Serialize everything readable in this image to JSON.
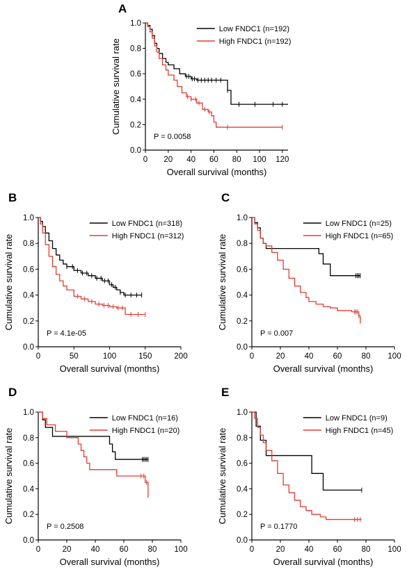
{
  "colors": {
    "low": "#000000",
    "high": "#e03c31"
  },
  "chart_data": [
    {
      "panel": "A",
      "type": "line",
      "xlabel": "Overall survival (months)",
      "ylabel": "Cumulative survival rate",
      "xlim": [
        0,
        125
      ],
      "ylim": [
        0,
        1
      ],
      "xticks": [
        "0",
        "20",
        "40",
        "60",
        "80",
        "100",
        "120"
      ],
      "yticks": [
        "0.0",
        "0.2",
        "0.4",
        "0.6",
        "0.8",
        "1.0"
      ],
      "xtick_values": [
        0,
        20,
        40,
        60,
        80,
        100,
        120
      ],
      "ytick_values": [
        0,
        0.2,
        0.4,
        0.6,
        0.8,
        1.0
      ],
      "legend_position": "top-right",
      "annotation": "P = 0.0058",
      "series": [
        {
          "name": "Low FNDC1 (n=192)",
          "color_key": "low",
          "points": [
            [
              0,
              1
            ],
            [
              2,
              0.98
            ],
            [
              4,
              0.95
            ],
            [
              6,
              0.9
            ],
            [
              8,
              0.84
            ],
            [
              10,
              0.8
            ],
            [
              12,
              0.76
            ],
            [
              15,
              0.72
            ],
            [
              18,
              0.69
            ],
            [
              20,
              0.67
            ],
            [
              25,
              0.64
            ],
            [
              30,
              0.6
            ],
            [
              35,
              0.58
            ],
            [
              40,
              0.56
            ],
            [
              45,
              0.55
            ],
            [
              55,
              0.55
            ],
            [
              65,
              0.55
            ],
            [
              70,
              0.55
            ],
            [
              72,
              0.47
            ],
            [
              75,
              0.36
            ],
            [
              90,
              0.36
            ],
            [
              105,
              0.36
            ],
            [
              120,
              0.36
            ],
            [
              125,
              0.36
            ]
          ],
          "censor": [
            36,
            38,
            41,
            43,
            46,
            49,
            52,
            55,
            58,
            62,
            66,
            72,
            82,
            96,
            112,
            120
          ]
        },
        {
          "name": "High FNDC1 (n=192)",
          "color_key": "high",
          "points": [
            [
              0,
              1
            ],
            [
              2,
              0.97
            ],
            [
              4,
              0.93
            ],
            [
              6,
              0.88
            ],
            [
              8,
              0.82
            ],
            [
              10,
              0.77
            ],
            [
              12,
              0.72
            ],
            [
              15,
              0.67
            ],
            [
              18,
              0.63
            ],
            [
              20,
              0.59
            ],
            [
              25,
              0.55
            ],
            [
              28,
              0.5
            ],
            [
              32,
              0.45
            ],
            [
              36,
              0.42
            ],
            [
              40,
              0.4
            ],
            [
              45,
              0.37
            ],
            [
              50,
              0.32
            ],
            [
              55,
              0.3
            ],
            [
              58,
              0.27
            ],
            [
              60,
              0.22
            ],
            [
              62,
              0.18
            ],
            [
              80,
              0.18
            ],
            [
              100,
              0.18
            ],
            [
              120,
              0.18
            ]
          ],
          "censor": [
            37,
            40,
            44,
            47,
            52,
            56,
            72,
            120
          ]
        }
      ]
    },
    {
      "panel": "B",
      "type": "line",
      "xlabel": "Overall survival (months)",
      "ylabel": "Cumulative survival rate",
      "xlim": [
        0,
        200
      ],
      "ylim": [
        0,
        1
      ],
      "xticks": [
        "0",
        "50",
        "100",
        "150",
        "200"
      ],
      "yticks": [
        "0.0",
        "0.2",
        "0.4",
        "0.6",
        "0.8",
        "1.0"
      ],
      "xtick_values": [
        0,
        50,
        100,
        150,
        200
      ],
      "ytick_values": [
        0,
        0.2,
        0.4,
        0.6,
        0.8,
        1.0
      ],
      "legend_position": "top-right",
      "annotation": "P = 4.1e-05",
      "series": [
        {
          "name": "Low FNDC1 (n=318)",
          "color_key": "low",
          "points": [
            [
              0,
              1
            ],
            [
              3,
              0.97
            ],
            [
              6,
              0.93
            ],
            [
              10,
              0.88
            ],
            [
              15,
              0.82
            ],
            [
              20,
              0.76
            ],
            [
              25,
              0.71
            ],
            [
              30,
              0.67
            ],
            [
              35,
              0.64
            ],
            [
              40,
              0.62
            ],
            [
              50,
              0.59
            ],
            [
              60,
              0.57
            ],
            [
              70,
              0.55
            ],
            [
              80,
              0.53
            ],
            [
              90,
              0.51
            ],
            [
              100,
              0.48
            ],
            [
              105,
              0.46
            ],
            [
              110,
              0.44
            ],
            [
              115,
              0.42
            ],
            [
              120,
              0.4
            ],
            [
              140,
              0.4
            ],
            [
              145,
              0.4
            ]
          ],
          "censor": [
            40,
            48,
            55,
            62,
            68,
            75,
            82,
            88,
            93,
            98,
            103,
            108,
            115,
            122,
            130,
            138,
            145
          ]
        },
        {
          "name": "High FNDC1 (n=312)",
          "color_key": "high",
          "points": [
            [
              0,
              1
            ],
            [
              3,
              0.95
            ],
            [
              6,
              0.88
            ],
            [
              10,
              0.79
            ],
            [
              15,
              0.7
            ],
            [
              20,
              0.62
            ],
            [
              25,
              0.56
            ],
            [
              30,
              0.51
            ],
            [
              35,
              0.47
            ],
            [
              40,
              0.44
            ],
            [
              50,
              0.39
            ],
            [
              60,
              0.37
            ],
            [
              70,
              0.35
            ],
            [
              80,
              0.33
            ],
            [
              90,
              0.32
            ],
            [
              100,
              0.31
            ],
            [
              110,
              0.3
            ],
            [
              120,
              0.3
            ],
            [
              122,
              0.25
            ],
            [
              135,
              0.25
            ],
            [
              150,
              0.25
            ]
          ],
          "censor": [
            55,
            65,
            75,
            85,
            92,
            98,
            105,
            112,
            118,
            130,
            140,
            150
          ]
        }
      ]
    },
    {
      "panel": "C",
      "type": "line",
      "xlabel": "Overall survival (months)",
      "ylabel": "Cumulative survival rate",
      "xlim": [
        0,
        100
      ],
      "ylim": [
        0,
        1
      ],
      "xticks": [
        "0",
        "20",
        "40",
        "60",
        "80",
        "100"
      ],
      "yticks": [
        "0.0",
        "0.2",
        "0.4",
        "0.6",
        "0.8",
        "1.0"
      ],
      "xtick_values": [
        0,
        20,
        40,
        60,
        80,
        100
      ],
      "ytick_values": [
        0,
        0.2,
        0.4,
        0.6,
        0.8,
        1.0
      ],
      "legend_position": "top-right",
      "annotation": "P = 0.007",
      "series": [
        {
          "name": "Low FNDC1 (n=25)",
          "color_key": "low",
          "points": [
            [
              0,
              1
            ],
            [
              2,
              0.96
            ],
            [
              4,
              0.92
            ],
            [
              6,
              0.84
            ],
            [
              8,
              0.8
            ],
            [
              10,
              0.76
            ],
            [
              30,
              0.76
            ],
            [
              45,
              0.76
            ],
            [
              47,
              0.72
            ],
            [
              50,
              0.64
            ],
            [
              55,
              0.55
            ],
            [
              70,
              0.55
            ],
            [
              76,
              0.55
            ]
          ],
          "censor": [
            73,
            74,
            75,
            76
          ]
        },
        {
          "name": "High FNDC1 (n=65)",
          "color_key": "high",
          "points": [
            [
              0,
              1
            ],
            [
              2,
              0.95
            ],
            [
              4,
              0.9
            ],
            [
              6,
              0.84
            ],
            [
              8,
              0.8
            ],
            [
              10,
              0.78
            ],
            [
              14,
              0.73
            ],
            [
              18,
              0.67
            ],
            [
              22,
              0.6
            ],
            [
              26,
              0.53
            ],
            [
              30,
              0.47
            ],
            [
              34,
              0.42
            ],
            [
              38,
              0.38
            ],
            [
              40,
              0.35
            ],
            [
              45,
              0.33
            ],
            [
              50,
              0.31
            ],
            [
              55,
              0.3
            ],
            [
              60,
              0.28
            ],
            [
              70,
              0.27
            ],
            [
              75,
              0.24
            ],
            [
              76,
              0.18
            ]
          ],
          "censor": [
            72,
            73,
            74,
            75
          ]
        }
      ]
    },
    {
      "panel": "D",
      "type": "line",
      "xlabel": "Overall survival (months)",
      "ylabel": "Cumulative survival rate",
      "xlim": [
        0,
        100
      ],
      "ylim": [
        0,
        1
      ],
      "xticks": [
        "0",
        "20",
        "40",
        "60",
        "80",
        "100"
      ],
      "yticks": [
        "0.0",
        "0.2",
        "0.4",
        "0.6",
        "0.8",
        "1.0"
      ],
      "xtick_values": [
        0,
        20,
        40,
        60,
        80,
        100
      ],
      "ytick_values": [
        0,
        0.2,
        0.4,
        0.6,
        0.8,
        1.0
      ],
      "legend_position": "top-right",
      "annotation": "P = 0.2508",
      "series": [
        {
          "name": "Low FNDC1 (n=16)",
          "color_key": "low",
          "points": [
            [
              0,
              1
            ],
            [
              3,
              0.94
            ],
            [
              5,
              0.88
            ],
            [
              10,
              0.81
            ],
            [
              30,
              0.81
            ],
            [
              48,
              0.81
            ],
            [
              50,
              0.75
            ],
            [
              52,
              0.69
            ],
            [
              54,
              0.63
            ],
            [
              70,
              0.63
            ],
            [
              77,
              0.63
            ]
          ],
          "censor": [
            73,
            74,
            75,
            76,
            77
          ]
        },
        {
          "name": "High FNDC1 (n=20)",
          "color_key": "high",
          "points": [
            [
              0,
              1
            ],
            [
              3,
              0.95
            ],
            [
              6,
              0.9
            ],
            [
              12,
              0.85
            ],
            [
              20,
              0.8
            ],
            [
              28,
              0.75
            ],
            [
              30,
              0.7
            ],
            [
              32,
              0.65
            ],
            [
              34,
              0.6
            ],
            [
              36,
              0.55
            ],
            [
              50,
              0.55
            ],
            [
              55,
              0.5
            ],
            [
              70,
              0.5
            ],
            [
              75,
              0.45
            ],
            [
              77,
              0.33
            ]
          ],
          "censor": [
            72,
            74,
            76
          ]
        }
      ]
    },
    {
      "panel": "E",
      "type": "line",
      "xlabel": "Overall survival (months)",
      "ylabel": "Cumulative survival rate",
      "xlim": [
        0,
        100
      ],
      "ylim": [
        0,
        1
      ],
      "xticks": [
        "0",
        "20",
        "40",
        "60",
        "80",
        "100"
      ],
      "yticks": [
        "0.0",
        "0.2",
        "0.4",
        "0.6",
        "0.8",
        "1.0"
      ],
      "xtick_values": [
        0,
        20,
        40,
        60,
        80,
        100
      ],
      "ytick_values": [
        0,
        0.2,
        0.4,
        0.6,
        0.8,
        1.0
      ],
      "legend_position": "top-right",
      "annotation": "P = 0.1770",
      "series": [
        {
          "name": "Low FNDC1 (n=9)",
          "color_key": "low",
          "points": [
            [
              0,
              1
            ],
            [
              3,
              0.89
            ],
            [
              6,
              0.78
            ],
            [
              10,
              0.66
            ],
            [
              25,
              0.66
            ],
            [
              40,
              0.66
            ],
            [
              42,
              0.52
            ],
            [
              48,
              0.52
            ],
            [
              50,
              0.39
            ],
            [
              70,
              0.39
            ],
            [
              77,
              0.39
            ]
          ],
          "censor": [
            77
          ]
        },
        {
          "name": "High FNDC1 (n=45)",
          "color_key": "high",
          "points": [
            [
              0,
              1
            ],
            [
              2,
              0.95
            ],
            [
              4,
              0.88
            ],
            [
              6,
              0.82
            ],
            [
              8,
              0.76
            ],
            [
              10,
              0.7
            ],
            [
              14,
              0.62
            ],
            [
              18,
              0.52
            ],
            [
              22,
              0.43
            ],
            [
              26,
              0.37
            ],
            [
              30,
              0.31
            ],
            [
              34,
              0.26
            ],
            [
              38,
              0.23
            ],
            [
              42,
              0.2
            ],
            [
              48,
              0.18
            ],
            [
              52,
              0.16
            ],
            [
              60,
              0.16
            ],
            [
              70,
              0.16
            ],
            [
              77,
              0.16
            ]
          ],
          "censor": [
            72,
            74,
            76
          ]
        }
      ]
    }
  ]
}
